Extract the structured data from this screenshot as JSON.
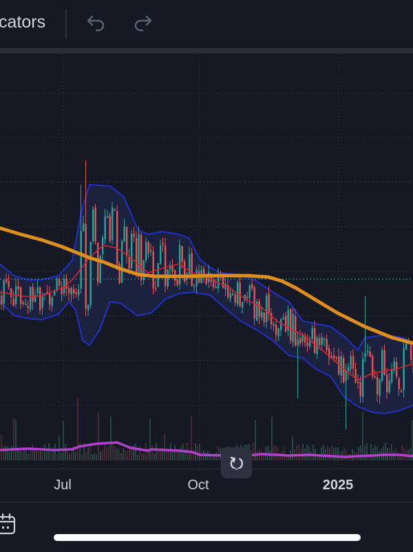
{
  "toolbar": {
    "indicators_label": "cators",
    "undo_icon": "undo-icon",
    "redo_icon": "redo-icon"
  },
  "chart_data": {
    "type": "candlestick",
    "x_tick_labels": [
      "Jul",
      "Oct",
      "2025"
    ],
    "x_tick_dates": [
      "2024-07-01",
      "2024-10-01",
      "2025-01-01"
    ],
    "x_range": [
      "2024-05-08",
      "2025-02-20"
    ],
    "grid": true,
    "price_line_style": "dotted",
    "colors": {
      "up": "#26a69a",
      "down": "#ef5350",
      "bollinger_band": "#2130c8",
      "bollinger_fill": "#1f2447",
      "bollinger_basis": "#e0202f",
      "moving_average": "#e08e1e",
      "volume_indicator": "#b53fd0",
      "price_line": "#26a69a",
      "background": "#151924"
    },
    "series": [
      {
        "name": "",
        "kind": "moving-average"
      },
      {
        "name": "",
        "kind": "bollinger-upper"
      },
      {
        "name": "",
        "kind": "bollinger-lower"
      },
      {
        "name": "",
        "kind": "bollinger-basis"
      },
      {
        "name": "",
        "kind": "candles"
      },
      {
        "name": "",
        "kind": "volume-indicator"
      }
    ]
  },
  "controls": {
    "reset_icon": "reset-chart-icon",
    "calendar_icon": "calendar-icon"
  }
}
